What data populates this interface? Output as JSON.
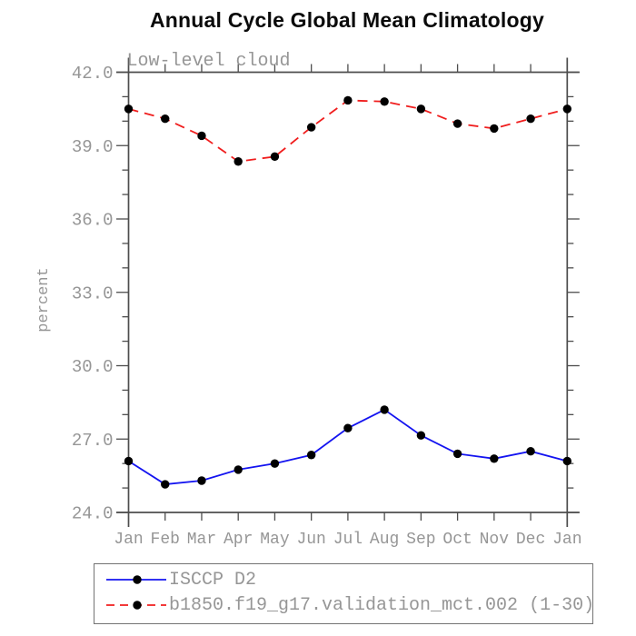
{
  "chart_data": {
    "type": "line",
    "title": "Annual Cycle Global Mean Climatology",
    "subtitle": "Low-level cloud",
    "xlabel": "",
    "ylabel": "percent",
    "x_tick_labels": [
      "Jan",
      "Feb",
      "Mar",
      "Apr",
      "May",
      "Jun",
      "Jul",
      "Aug",
      "Sep",
      "Oct",
      "Nov",
      "Dec",
      "Jan"
    ],
    "ylim": [
      24.0,
      42.0
    ],
    "y_major_ticks": [
      24.0,
      27.0,
      30.0,
      33.0,
      36.0,
      39.0,
      42.0
    ],
    "y_major_tick_labels": [
      "24.0",
      "27.0",
      "30.0",
      "33.0",
      "36.0",
      "39.0",
      "42.0"
    ],
    "y_minor_step": 1.0,
    "grid": false,
    "legend_position": "bottom",
    "series": [
      {
        "name": "ISCCP D2",
        "color": "#1414f0",
        "style": "solid",
        "marker": "circle",
        "marker_color": "#000000",
        "values": [
          26.1,
          25.15,
          25.3,
          25.75,
          26.0,
          26.35,
          27.45,
          28.2,
          27.15,
          26.4,
          26.2,
          26.5,
          26.1
        ]
      },
      {
        "name": "b1850.f19_g17.validation_mct.002 (1-30)",
        "color": "#f01e1e",
        "style": "dashed",
        "marker": "circle",
        "marker_color": "#000000",
        "values": [
          40.5,
          40.1,
          39.4,
          38.35,
          38.55,
          39.75,
          40.85,
          40.8,
          40.5,
          39.9,
          39.7,
          40.1,
          40.5
        ]
      }
    ]
  }
}
